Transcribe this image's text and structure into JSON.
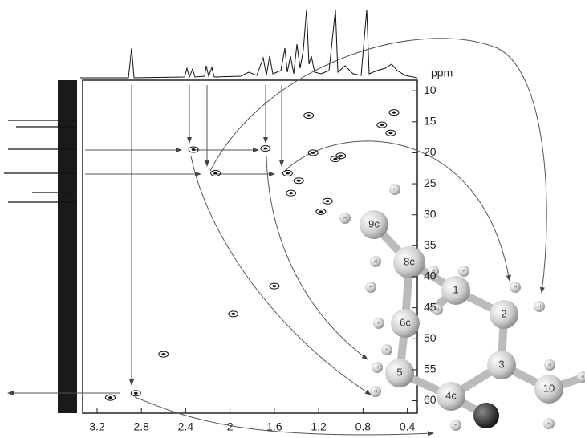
{
  "chart_data": {
    "type": "scatter",
    "y_axis_unit": "ppm",
    "xlim": [
      3.33,
      0.31
    ],
    "xticks": [
      3.2,
      2.8,
      2.4,
      2.0,
      1.6,
      1.2,
      0.8,
      0.4
    ],
    "ylim": [
      8.3,
      62
    ],
    "yticks": [
      10,
      15,
      20,
      25,
      30,
      35,
      40,
      45,
      50,
      55,
      60
    ],
    "y_inverted": true,
    "color": "#111",
    "x": [
      2.33,
      2.13,
      1.68,
      1.48,
      2.85,
      3.08,
      0.63,
      0.52,
      0.55,
      1.05,
      1.12,
      1.38,
      1.45,
      1.97,
      1.6,
      2.6,
      1.25,
      1.29,
      1.18,
      1.0
    ],
    "y": [
      19.5,
      23.3,
      19.3,
      23.3,
      58.8,
      59.5,
      15.5,
      13.5,
      16.8,
      21.0,
      27.8,
      24.5,
      26.5,
      46.0,
      41.5,
      52.5,
      20.0,
      14.0,
      29.5,
      20.5
    ],
    "molecule": {
      "atoms": [
        "9c",
        "8c",
        "1",
        "6c",
        "2",
        "5",
        "3",
        "4c",
        "10"
      ],
      "hydrogen": "H"
    }
  }
}
